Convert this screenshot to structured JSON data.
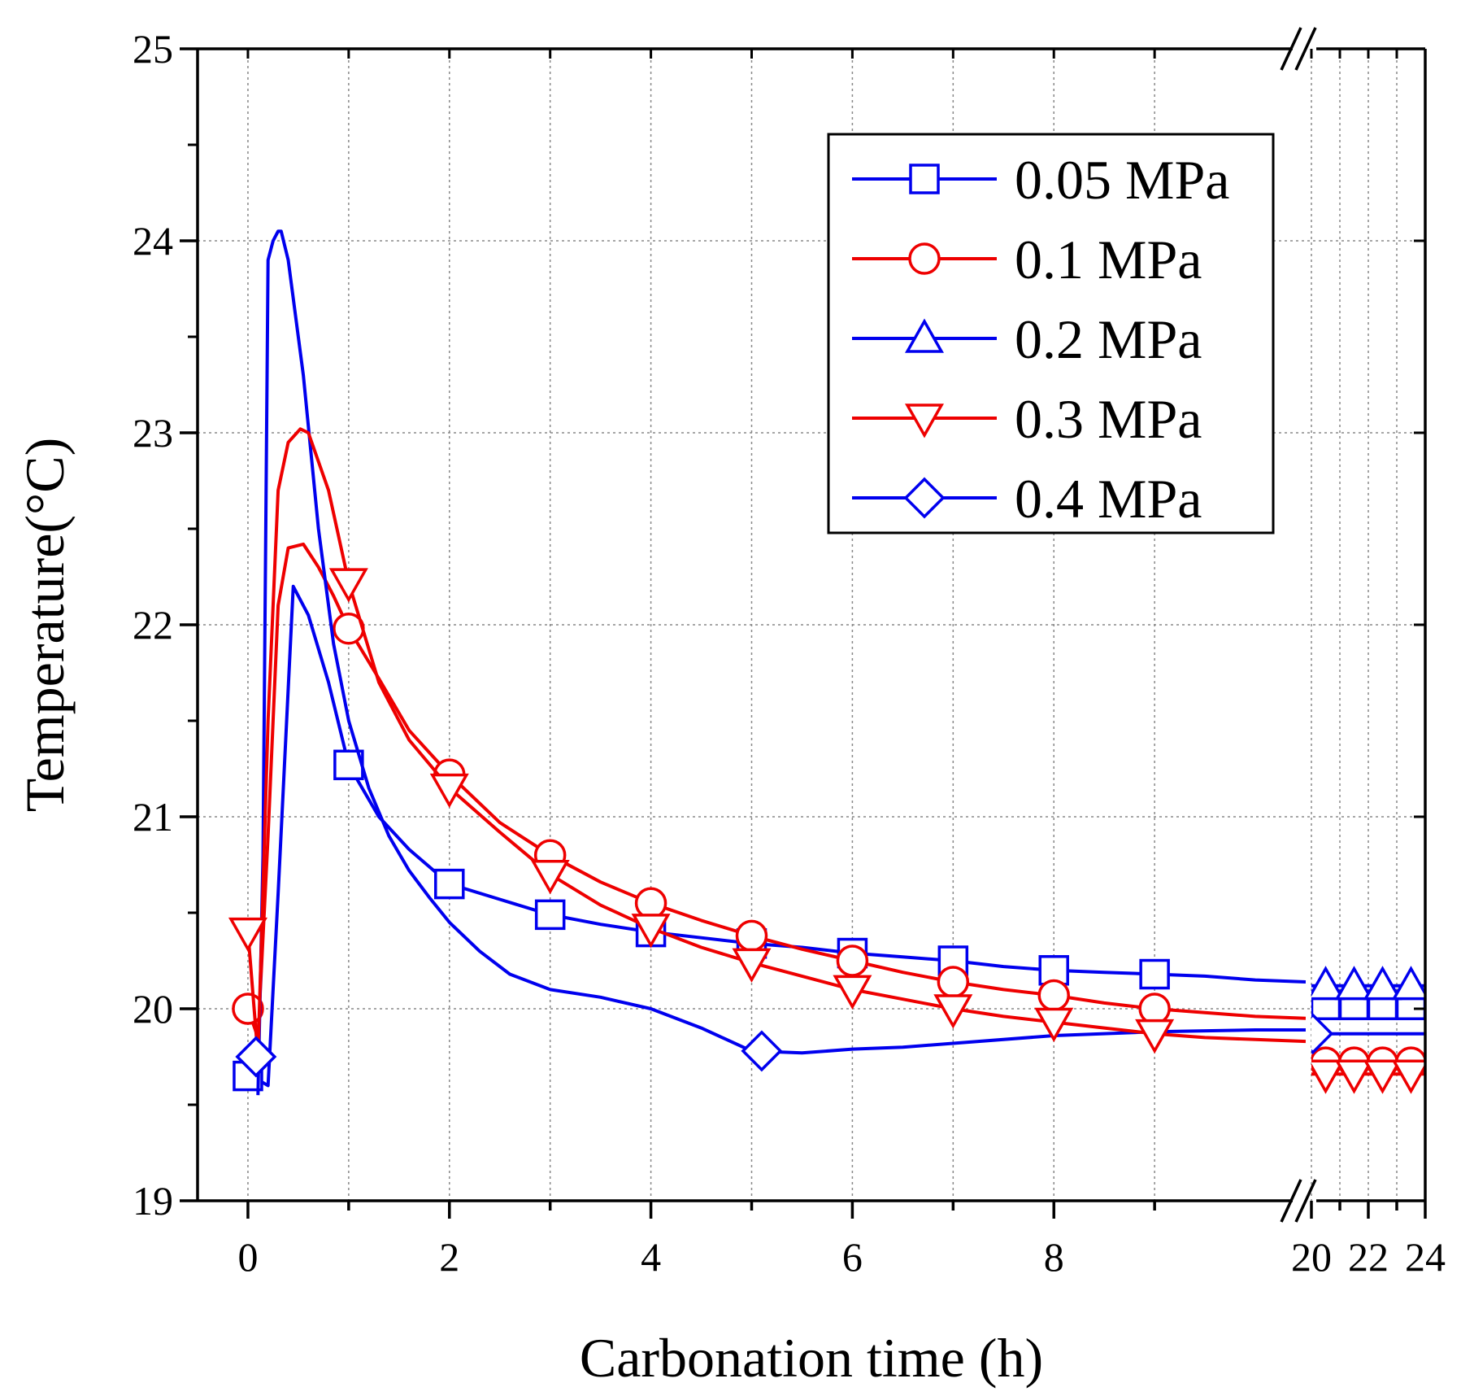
{
  "chart_data": {
    "type": "line",
    "title": "",
    "xlabel": "Carbonation time (h)",
    "ylabel": "Temperature(°C)",
    "ylim": [
      19,
      25
    ],
    "y_ticks": [
      19,
      20,
      21,
      22,
      23,
      24,
      25
    ],
    "x_segments": [
      {
        "range": [
          -0.5,
          10.5
        ],
        "ticks": [
          0,
          2,
          4,
          6,
          8
        ],
        "minor_ticks": [
          1,
          3,
          5,
          7,
          9
        ]
      },
      {
        "range": [
          20,
          24
        ],
        "ticks": [
          20,
          22,
          24
        ],
        "minor_ticks": [
          21,
          23
        ]
      }
    ],
    "axis_break": "x between 10.5 and 20 h",
    "grid": true,
    "legend_position": "top-right",
    "series": [
      {
        "name": "0.05 MPa",
        "color": "#0000ee",
        "marker": "square",
        "x": [
          0,
          0.1,
          0.2,
          0.3,
          0.45,
          0.6,
          0.8,
          1.0,
          1.3,
          1.6,
          2.0,
          2.5,
          3.0,
          3.5,
          4.0,
          4.5,
          5.0,
          5.5,
          6.0,
          6.5,
          7.0,
          7.5,
          8.0,
          8.5,
          9.0,
          9.5,
          10.0,
          10.5
        ],
        "y": [
          19.65,
          19.63,
          19.6,
          20.6,
          22.2,
          22.05,
          21.7,
          21.27,
          21.0,
          20.83,
          20.65,
          20.57,
          20.49,
          20.44,
          20.4,
          20.37,
          20.34,
          20.32,
          20.29,
          20.27,
          20.25,
          20.22,
          20.2,
          20.19,
          20.18,
          20.17,
          20.15,
          20.14
        ],
        "markers_x": [
          0,
          1,
          2,
          3,
          4,
          5,
          6,
          7,
          8,
          9
        ],
        "markers_y": [
          19.65,
          21.27,
          20.65,
          20.49,
          20.4,
          20.34,
          20.29,
          20.25,
          20.2,
          20.18
        ],
        "after_break": {
          "x": [
            20,
            20.5,
            21,
            21.5,
            22,
            22.5,
            23,
            23.5,
            24
          ],
          "y": [
            20.02,
            20.02,
            20.02,
            20.02,
            20.02,
            20.02,
            20.02,
            20.02,
            20.02
          ],
          "markers_x": [
            20.5,
            21.5,
            22.5,
            23.5
          ],
          "markers_y": [
            20.02,
            20.02,
            20.02,
            20.02
          ]
        }
      },
      {
        "name": "0.1 MPa",
        "color": "#ee0000",
        "marker": "circle",
        "x": [
          0,
          0.1,
          0.2,
          0.3,
          0.4,
          0.55,
          0.7,
          0.85,
          1.0,
          1.3,
          1.6,
          2.0,
          2.5,
          3.0,
          3.5,
          4.0,
          4.5,
          5.0,
          5.5,
          6.0,
          6.5,
          7.0,
          7.5,
          8.0,
          8.5,
          9.0,
          9.5,
          10.0,
          10.5
        ],
        "y": [
          20.0,
          19.85,
          20.9,
          22.1,
          22.4,
          22.42,
          22.3,
          22.15,
          21.98,
          21.72,
          21.45,
          21.22,
          20.97,
          20.8,
          20.66,
          20.55,
          20.46,
          20.38,
          20.31,
          20.25,
          20.19,
          20.14,
          20.1,
          20.07,
          20.03,
          20.0,
          19.98,
          19.96,
          19.95
        ],
        "markers_x": [
          0,
          1,
          2,
          3,
          4,
          5,
          6,
          7,
          8,
          9
        ],
        "markers_y": [
          20.0,
          21.98,
          21.22,
          20.8,
          20.55,
          20.38,
          20.25,
          20.14,
          20.07,
          20.0
        ],
        "after_break": {
          "x": [
            20,
            20.5,
            21,
            21.5,
            22,
            22.5,
            23,
            23.5,
            24
          ],
          "y": [
            19.72,
            19.72,
            19.72,
            19.72,
            19.72,
            19.72,
            19.72,
            19.72,
            19.72
          ],
          "markers_x": [
            20.5,
            21.5,
            22.5,
            23.5
          ],
          "markers_y": [
            19.72,
            19.72,
            19.72,
            19.72
          ]
        }
      },
      {
        "name": "0.2 MPa",
        "color": "#0000ee",
        "marker": "triangle-up",
        "x": [
          0.1,
          0.15,
          0.2,
          0.25,
          0.3,
          0.33,
          0.4,
          0.55,
          0.7,
          0.85,
          1.0,
          1.2,
          1.4,
          1.6,
          1.8,
          2.0,
          2.3,
          2.6,
          3.0,
          3.5,
          4.0,
          4.5,
          5.0,
          5.5,
          6.0,
          6.5,
          7.0,
          8.0,
          9.0,
          10.0,
          10.5
        ],
        "y": [
          19.55,
          20.8,
          23.9,
          24.0,
          24.05,
          24.05,
          23.9,
          23.3,
          22.5,
          21.9,
          21.5,
          21.15,
          20.9,
          20.72,
          20.58,
          20.45,
          20.3,
          20.18,
          20.1,
          20.06,
          20.0,
          19.9,
          19.78,
          19.77,
          19.79,
          19.8,
          19.82,
          19.86,
          19.88,
          19.89,
          19.89
        ],
        "markers_x": [],
        "markers_y": [],
        "after_break": {
          "x": [
            20,
            20.5,
            21,
            21.5,
            22,
            22.5,
            23,
            23.5,
            24
          ],
          "y": [
            20.12,
            20.12,
            20.12,
            20.12,
            20.12,
            20.12,
            20.12,
            20.12,
            20.12
          ],
          "markers_x": [
            20.5,
            21.5,
            22.5,
            23.5
          ],
          "markers_y": [
            20.12,
            20.12,
            20.12,
            20.12
          ]
        }
      },
      {
        "name": "0.3 MPa",
        "color": "#ee0000",
        "marker": "triangle-down",
        "x": [
          0,
          0.1,
          0.2,
          0.3,
          0.4,
          0.52,
          0.6,
          0.8,
          1.0,
          1.3,
          1.6,
          2.0,
          2.5,
          3.0,
          3.5,
          4.0,
          4.5,
          5.0,
          5.5,
          6.0,
          6.5,
          7.0,
          7.5,
          8.0,
          8.5,
          9.0,
          9.5,
          10.0,
          10.5
        ],
        "y": [
          20.4,
          19.75,
          21.5,
          22.7,
          22.95,
          23.02,
          23.0,
          22.7,
          22.22,
          21.7,
          21.4,
          21.15,
          20.92,
          20.7,
          20.54,
          20.42,
          20.32,
          20.24,
          20.17,
          20.1,
          20.05,
          20.0,
          19.96,
          19.93,
          19.9,
          19.87,
          19.85,
          19.84,
          19.83
        ],
        "markers_x": [
          0,
          1,
          2,
          3,
          4,
          5,
          6,
          7,
          8,
          9
        ],
        "markers_y": [
          20.4,
          22.22,
          21.15,
          20.7,
          20.42,
          20.24,
          20.1,
          20.0,
          19.93,
          19.87
        ],
        "after_break": {
          "x": [
            20,
            20.5,
            21,
            21.5,
            22,
            22.5,
            23,
            23.5,
            24
          ],
          "y": [
            19.66,
            19.66,
            19.66,
            19.66,
            19.66,
            19.66,
            19.66,
            19.66,
            19.66
          ],
          "markers_x": [
            20.5,
            21.5,
            22.5,
            23.5
          ],
          "markers_y": [
            19.66,
            19.66,
            19.66,
            19.66
          ]
        }
      },
      {
        "name": "0.4 MPa",
        "color": "#0000ee",
        "marker": "diamond",
        "x": [
          0.08
        ],
        "y": [
          19.75
        ],
        "markers_x": [
          0.08,
          5.1
        ],
        "markers_y": [
          19.75,
          19.78
        ],
        "after_break": {
          "x": [
            20,
            20.5,
            21,
            21.5,
            22,
            22.5,
            23,
            23.5,
            24
          ],
          "y": [
            19.87,
            19.87,
            19.87,
            19.87,
            19.87,
            19.87,
            19.87,
            19.87,
            19.87
          ],
          "markers_x": [
            20.05
          ],
          "markers_y": [
            19.87
          ]
        }
      }
    ]
  }
}
